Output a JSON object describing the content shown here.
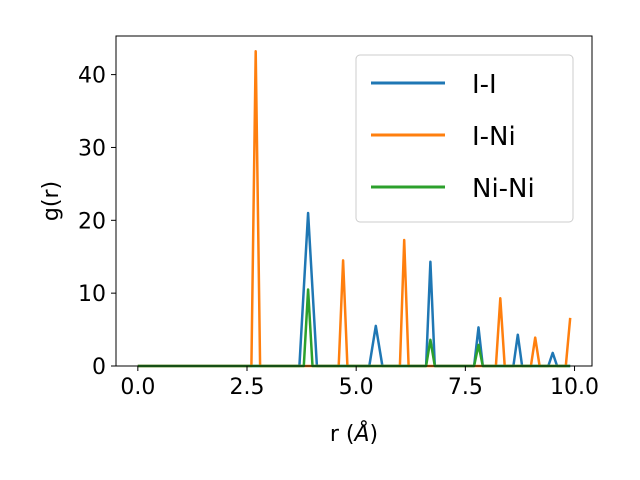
{
  "chart_data": {
    "type": "line",
    "title": "",
    "xlabel_main": "r (",
    "xlabel_unit": "Å",
    "xlabel_close": ")",
    "ylabel": "g(r)",
    "xlim": [
      -0.5,
      10.4
    ],
    "ylim": [
      0,
      45.3
    ],
    "xticks": [
      0.0,
      2.5,
      5.0,
      7.5,
      10.0
    ],
    "xtick_labels": [
      "0.0",
      "2.5",
      "5.0",
      "7.5",
      "10.0"
    ],
    "yticks": [
      0,
      10,
      20,
      30,
      40
    ],
    "ytick_labels": [
      "0",
      "10",
      "20",
      "30",
      "40"
    ],
    "grid": false,
    "legend_position": "upper-right",
    "series": [
      {
        "name": "I-I",
        "color": "#1f77b4",
        "x": [
          0.0,
          3.7,
          3.9,
          4.1,
          5.3,
          5.45,
          5.6,
          6.6,
          6.7,
          6.8,
          7.7,
          7.8,
          7.9,
          8.6,
          8.7,
          8.8,
          9.4,
          9.5,
          9.6,
          9.9
        ],
        "y": [
          0,
          0,
          21.0,
          0,
          0,
          5.5,
          0,
          0,
          14.3,
          0,
          0,
          5.3,
          0,
          0,
          4.3,
          0,
          0,
          1.8,
          0,
          0
        ]
      },
      {
        "name": "I-Ni",
        "color": "#ff7f0e",
        "x": [
          0.0,
          2.6,
          2.7,
          2.8,
          4.6,
          4.7,
          4.8,
          6.0,
          6.1,
          6.2,
          8.2,
          8.3,
          8.4,
          9.0,
          9.1,
          9.2,
          9.8,
          9.9
        ],
        "y": [
          0,
          0,
          43.2,
          0,
          0,
          14.5,
          0,
          0,
          17.3,
          0,
          0,
          9.3,
          0,
          0,
          3.9,
          0,
          0,
          6.6
        ]
      },
      {
        "name": "Ni-Ni",
        "color": "#2ca02c",
        "x": [
          0.0,
          3.8,
          3.9,
          4.0,
          6.6,
          6.7,
          6.8,
          7.7,
          7.8,
          7.9,
          9.9
        ],
        "y": [
          0,
          0,
          10.5,
          0,
          0,
          3.6,
          0,
          0,
          2.9,
          0,
          0
        ]
      }
    ]
  }
}
